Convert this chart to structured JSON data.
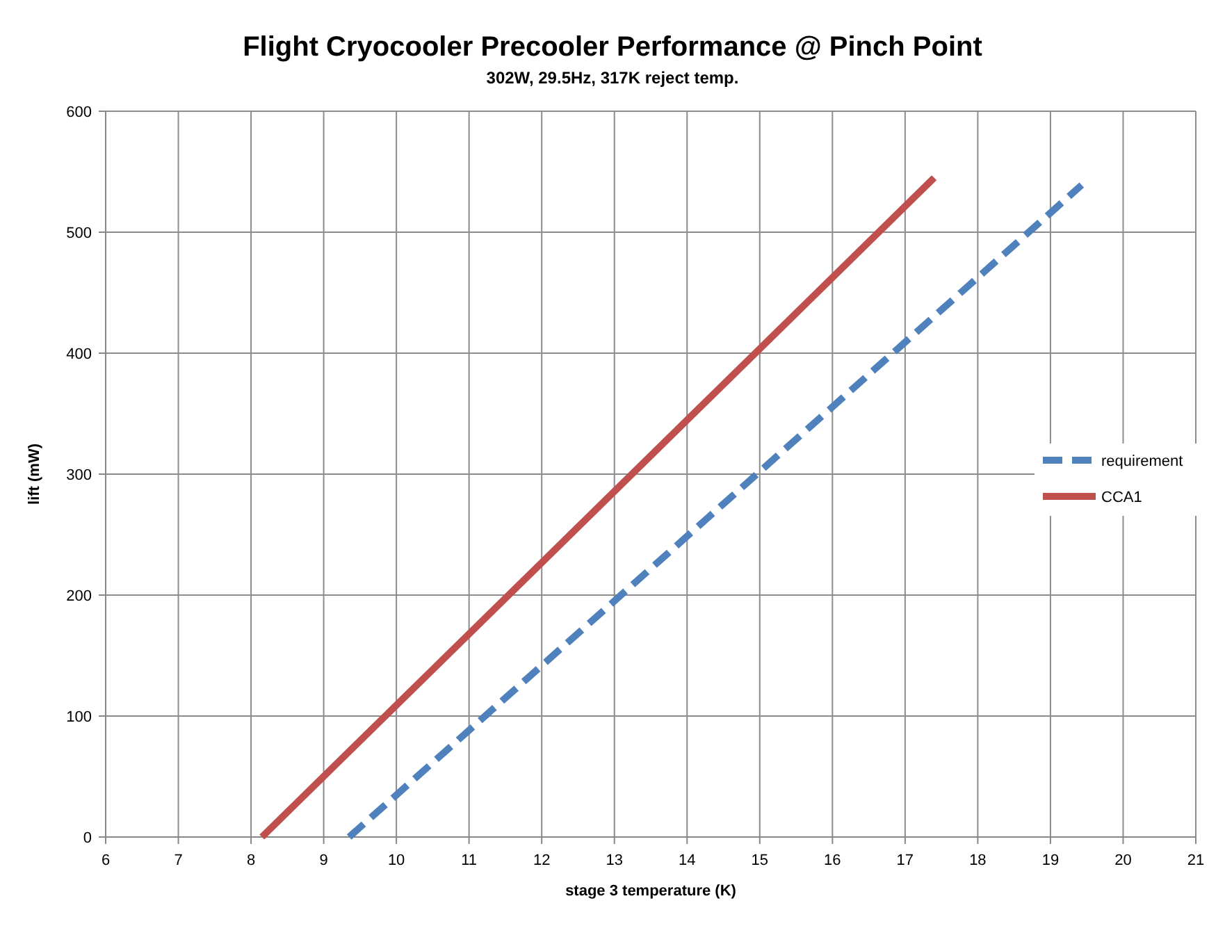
{
  "chart_data": {
    "type": "line",
    "title": "Flight Cryocooler Precooler Performance @ Pinch Point",
    "subtitle": "302W, 29.5Hz,  317K reject temp.",
    "xlabel": "stage 3 temperature (K)",
    "ylabel": "lift (mW)",
    "xlim": [
      6,
      21
    ],
    "xticks": [
      6,
      7,
      8,
      9,
      10,
      11,
      12,
      13,
      14,
      15,
      16,
      17,
      18,
      19,
      20,
      21
    ],
    "ylim": [
      0,
      600
    ],
    "yticks": [
      0,
      100,
      200,
      300,
      400,
      500,
      600
    ],
    "grid": true,
    "legend": "right",
    "series": [
      {
        "name": "requirement",
        "color": "#4f81bd",
        "line_style": "dashed",
        "x": [
          9.35,
          19.43
        ],
        "values": [
          0,
          539
        ]
      },
      {
        "name": "CCA1",
        "color": "#c0504d",
        "line_style": "solid",
        "x": [
          8.15,
          17.4
        ],
        "values": [
          0,
          545
        ]
      }
    ]
  }
}
